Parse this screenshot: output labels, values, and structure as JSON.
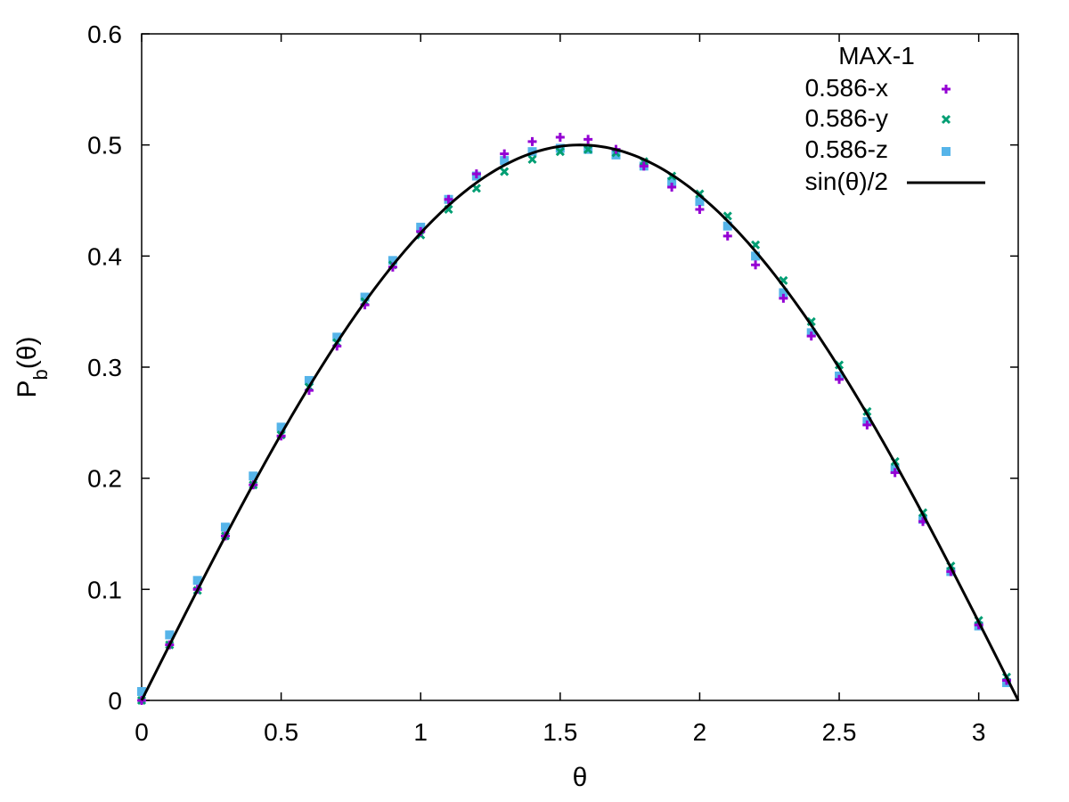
{
  "chart_data": {
    "type": "scatter",
    "title": "",
    "xlabel": "θ",
    "ylabel_main": "P",
    "ylabel_sub": "b",
    "ylabel_tail": "(θ)",
    "xlim": [
      0,
      3.14159
    ],
    "ylim": [
      0,
      0.6
    ],
    "xticks": [
      0,
      0.5,
      1,
      1.5,
      2,
      2.5,
      3
    ],
    "xtick_labels": [
      "0",
      "0.5",
      "1",
      "1.5",
      "2",
      "2.5",
      "3"
    ],
    "yticks": [
      0,
      0.1,
      0.2,
      0.3,
      0.4,
      0.5,
      0.6
    ],
    "ytick_labels": [
      "0",
      "0.1",
      "0.2",
      "0.3",
      "0.4",
      "0.5",
      "0.6"
    ],
    "grid": false,
    "legend": {
      "title": "MAX-1",
      "placement": "top-right"
    },
    "x": [
      0.0,
      0.1,
      0.2,
      0.3,
      0.4,
      0.5,
      0.6,
      0.7,
      0.8,
      0.9,
      1.0,
      1.1,
      1.2,
      1.3,
      1.4,
      1.5,
      1.6,
      1.7,
      1.8,
      1.9,
      2.0,
      2.1,
      2.2,
      2.3,
      2.4,
      2.5,
      2.6,
      2.7,
      2.8,
      2.9,
      3.0,
      3.1
    ],
    "series": [
      {
        "name": "0.586-x",
        "marker": "plus",
        "color": "#9400d3",
        "values": [
          0.0,
          0.05,
          0.1,
          0.148,
          0.194,
          0.238,
          0.279,
          0.319,
          0.356,
          0.39,
          0.422,
          0.451,
          0.474,
          0.492,
          0.503,
          0.507,
          0.505,
          0.496,
          0.481,
          0.462,
          0.442,
          0.418,
          0.392,
          0.362,
          0.328,
          0.289,
          0.248,
          0.205,
          0.161,
          0.116,
          0.068,
          0.018
        ]
      },
      {
        "name": "0.586-y",
        "marker": "cross",
        "color": "#009e73",
        "values": [
          0.0,
          0.05,
          0.099,
          0.148,
          0.194,
          0.239,
          0.282,
          0.322,
          0.359,
          0.392,
          0.419,
          0.442,
          0.461,
          0.476,
          0.487,
          0.494,
          0.496,
          0.493,
          0.485,
          0.472,
          0.456,
          0.436,
          0.41,
          0.378,
          0.341,
          0.302,
          0.26,
          0.215,
          0.169,
          0.121,
          0.072,
          0.021
        ]
      },
      {
        "name": "0.586-z",
        "marker": "square",
        "color": "#56b4e9",
        "values": [
          0.008,
          0.059,
          0.108,
          0.156,
          0.202,
          0.246,
          0.288,
          0.327,
          0.363,
          0.396,
          0.426,
          0.451,
          0.472,
          0.486,
          0.494,
          0.497,
          0.496,
          0.491,
          0.481,
          0.467,
          0.449,
          0.427,
          0.4,
          0.367,
          0.331,
          0.292,
          0.251,
          0.208,
          0.163,
          0.116,
          0.067,
          0.016
        ]
      },
      {
        "name": "sin(θ)/2",
        "marker": "line",
        "color": "#000000"
      }
    ]
  }
}
